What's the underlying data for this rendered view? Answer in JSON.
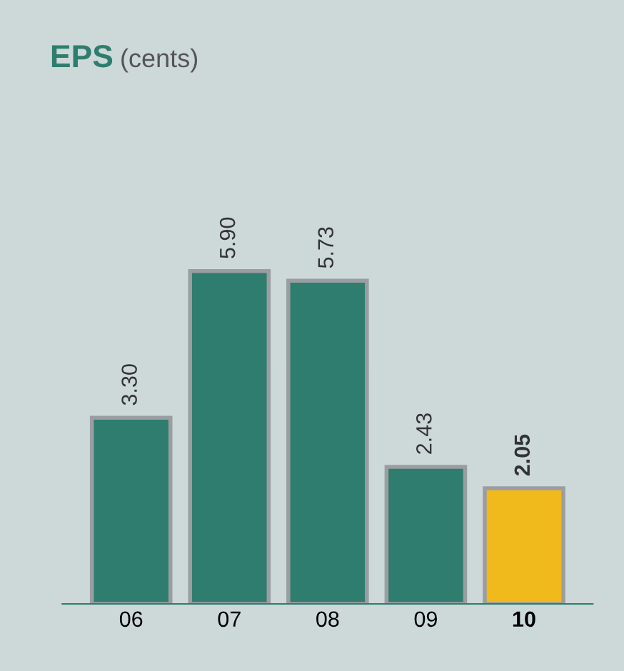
{
  "chart_data": {
    "type": "bar",
    "title": "EPS (cents)",
    "categories": [
      "06",
      "07",
      "08",
      "09",
      "10"
    ],
    "values": [
      3.3,
      5.9,
      5.73,
      2.43,
      2.05
    ],
    "value_labels": [
      "3.30",
      "5.90",
      "5.73",
      "2.43",
      "2.05"
    ],
    "colors": [
      "#2e7d6e",
      "#2e7d6e",
      "#2e7d6e",
      "#2e7d6e",
      "#f0b91c"
    ],
    "grid": false
  }
}
